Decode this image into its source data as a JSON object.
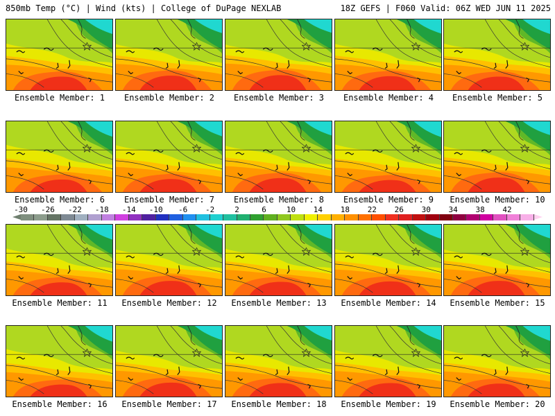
{
  "header": {
    "left": "850mb Temp (°C) | Wind (kts) | College of DuPage NEXLAB",
    "right": "18Z GEFS | F060 Valid: 06Z WED JUN 11 2025"
  },
  "panel_label_prefix": "Ensemble Member:",
  "panels": [
    {
      "member": 1,
      "warmth": 0.55
    },
    {
      "member": 2,
      "warmth": 0.65
    },
    {
      "member": 3,
      "warmth": 0.7
    },
    {
      "member": 4,
      "warmth": 0.6
    },
    {
      "member": 5,
      "warmth": 0.55
    },
    {
      "member": 6,
      "warmth": 0.45
    },
    {
      "member": 7,
      "warmth": 0.5
    },
    {
      "member": 8,
      "warmth": 0.6
    },
    {
      "member": 9,
      "warmth": 0.4
    },
    {
      "member": 10,
      "warmth": 0.65
    },
    {
      "member": 11,
      "warmth": 0.5
    },
    {
      "member": 12,
      "warmth": 0.65
    },
    {
      "member": 13,
      "warmth": 0.55
    },
    {
      "member": 14,
      "warmth": 0.6
    },
    {
      "member": 15,
      "warmth": 0.65
    },
    {
      "member": 16,
      "warmth": 0.4
    },
    {
      "member": 17,
      "warmth": 0.6
    },
    {
      "member": 18,
      "warmth": 0.55
    },
    {
      "member": 19,
      "warmth": 0.55
    },
    {
      "member": 20,
      "warmth": 0.5
    }
  ],
  "colorbar": {
    "labels": [
      "-30",
      "-26",
      "-22",
      "-18",
      "-14",
      "-10",
      "-6",
      "-2",
      "2",
      "6",
      "10",
      "14",
      "18",
      "22",
      "26",
      "30",
      "34",
      "38",
      "42"
    ],
    "colors": [
      "#7f8f7f",
      "#8c9c8c",
      "#657565",
      "#7f8a94",
      "#a0b0c0",
      "#b0a0d0",
      "#c080e0",
      "#d040e0",
      "#9030c0",
      "#5020a0",
      "#2030c0",
      "#2060e0",
      "#2090f0",
      "#20c0e0",
      "#20d0d0",
      "#20c0a0",
      "#20b070",
      "#30a030",
      "#60b020",
      "#90c820",
      "#c0e010",
      "#f0f000",
      "#ffd000",
      "#ffb000",
      "#ff9000",
      "#ff7000",
      "#ff5000",
      "#f03020",
      "#e02020",
      "#c01010",
      "#a00010",
      "#800010",
      "#900040",
      "#b00070",
      "#d000a0",
      "#e050c0",
      "#f080d8",
      "#f8b0e8"
    ],
    "min_color": "#6f7f6f",
    "max_color": "#ffd0f0"
  },
  "palette": {
    "teal": "#20d8d0",
    "green_dark": "#20a040",
    "green": "#60b828",
    "yellow_green": "#b0d820",
    "yellow": "#e8e800",
    "orange_light": "#ffc000",
    "orange": "#ff9800",
    "orange_dark": "#ff6a10",
    "red": "#f03018"
  }
}
